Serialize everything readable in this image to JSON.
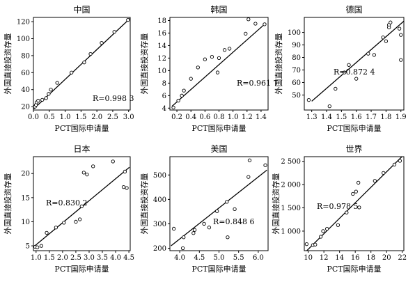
{
  "chart_data": [
    {
      "type": "scatter",
      "title": "中国",
      "xlabel": "PCT国际申请量",
      "ylabel": "外国直接投资存量",
      "annotation": "R=0.998 3",
      "xlim": [
        0,
        3.05
      ],
      "ylim": [
        16,
        125
      ],
      "xticks": [
        "0.0",
        "0.5",
        "1.0",
        "1.5",
        "2.0",
        "2.5",
        "3.0"
      ],
      "xtick_values": [
        0,
        0.5,
        1,
        1.5,
        2,
        2.5,
        3
      ],
      "yticks": [
        "20",
        "40",
        "60",
        "80",
        "100",
        "120"
      ],
      "ytick_values": [
        20,
        40,
        60,
        80,
        100,
        120
      ],
      "points": [
        [
          0.05,
          20
        ],
        [
          0.08,
          22
        ],
        [
          0.1,
          25
        ],
        [
          0.15,
          27
        ],
        [
          0.28,
          28
        ],
        [
          0.4,
          30
        ],
        [
          0.48,
          35
        ],
        [
          0.55,
          40
        ],
        [
          0.75,
          48
        ],
        [
          1.2,
          60
        ],
        [
          1.6,
          72
        ],
        [
          1.8,
          82
        ],
        [
          2.15,
          95
        ],
        [
          2.55,
          108
        ],
        [
          2.98,
          122
        ]
      ],
      "fit_line": [
        [
          0,
          17
        ],
        [
          3.05,
          124
        ]
      ]
    },
    {
      "type": "scatter",
      "title": "韩国",
      "xlabel": "PCT国际申请量",
      "ylabel": "外国直接投资存量",
      "annotation": "R=0.961 7",
      "xlim": [
        0.1,
        1.5
      ],
      "ylim": [
        3.7,
        18.5
      ],
      "xticks": [
        "0.2",
        "0.4",
        "0.6",
        "0.8",
        "1.0",
        "1.2",
        "1.4"
      ],
      "xtick_values": [
        0.2,
        0.4,
        0.6,
        0.8,
        1.0,
        1.2,
        1.4
      ],
      "yticks": [
        "4",
        "6",
        "8",
        "10",
        "12",
        "14",
        "16",
        "18"
      ],
      "ytick_values": [
        4,
        6,
        8,
        10,
        12,
        14,
        16,
        18
      ],
      "points": [
        [
          0.15,
          4.1
        ],
        [
          0.22,
          5.2
        ],
        [
          0.27,
          6.0
        ],
        [
          0.3,
          6.8
        ],
        [
          0.4,
          8.7
        ],
        [
          0.5,
          10.5
        ],
        [
          0.6,
          11.8
        ],
        [
          0.7,
          12.2
        ],
        [
          0.78,
          9.7
        ],
        [
          0.8,
          12.0
        ],
        [
          0.88,
          13.3
        ],
        [
          0.95,
          13.5
        ],
        [
          1.18,
          15.9
        ],
        [
          1.22,
          18.2
        ],
        [
          1.32,
          17.5
        ],
        [
          1.45,
          17.4
        ]
      ],
      "fit_line": [
        [
          0.13,
          4.3
        ],
        [
          1.47,
          17.6
        ]
      ]
    },
    {
      "type": "scatter",
      "title": "德国",
      "xlabel": "PCT国际申请量",
      "ylabel": "外国直接投资存量",
      "annotation": "R=0.872 4",
      "xlim": [
        1.25,
        1.92
      ],
      "ylim": [
        38,
        112
      ],
      "xticks": [
        "1.3",
        "1.4",
        "1.5",
        "1.6",
        "1.7",
        "1.8",
        "1.9"
      ],
      "xtick_values": [
        1.3,
        1.4,
        1.5,
        1.6,
        1.7,
        1.8,
        1.9
      ],
      "yticks": [
        "50",
        "60",
        "70",
        "80",
        "90",
        "100"
      ],
      "ytick_values": [
        50,
        60,
        70,
        80,
        90,
        100
      ],
      "points": [
        [
          1.28,
          46
        ],
        [
          1.42,
          41
        ],
        [
          1.46,
          55
        ],
        [
          1.52,
          68
        ],
        [
          1.55,
          74
        ],
        [
          1.6,
          63
        ],
        [
          1.68,
          83
        ],
        [
          1.72,
          82
        ],
        [
          1.78,
          96
        ],
        [
          1.8,
          93
        ],
        [
          1.82,
          106
        ],
        [
          1.82,
          104
        ],
        [
          1.83,
          108
        ],
        [
          1.89,
          103
        ],
        [
          1.9,
          98
        ],
        [
          1.9,
          78
        ]
      ],
      "fit_line": [
        [
          1.3,
          45
        ],
        [
          1.92,
          109
        ]
      ]
    },
    {
      "type": "scatter",
      "title": "日本",
      "xlabel": "PCT国际申请量",
      "ylabel": "外国直接投资存量",
      "annotation": "R=0.830 2",
      "xlim": [
        0.9,
        4.55
      ],
      "ylim": [
        4,
        23.5
      ],
      "xticks": [
        "1.0",
        "1.5",
        "2.0",
        "2.5",
        "3.0",
        "3.5",
        "4.0",
        "4.5"
      ],
      "xtick_values": [
        1.0,
        1.5,
        2.0,
        2.5,
        3.0,
        3.5,
        4.0,
        4.5
      ],
      "yticks": [
        "5",
        "10",
        "15",
        "20"
      ],
      "ytick_values": [
        5,
        10,
        15,
        20
      ],
      "points": [
        [
          0.97,
          4.8
        ],
        [
          1.05,
          4.7
        ],
        [
          1.2,
          5.0
        ],
        [
          1.4,
          7.7
        ],
        [
          1.75,
          8.8
        ],
        [
          2.05,
          9.8
        ],
        [
          2.5,
          10.0
        ],
        [
          2.65,
          10.5
        ],
        [
          2.72,
          13.2
        ],
        [
          2.8,
          20.2
        ],
        [
          2.92,
          19.8
        ],
        [
          3.15,
          21.5
        ],
        [
          3.9,
          22.5
        ],
        [
          4.3,
          17.2
        ],
        [
          4.35,
          20.4
        ],
        [
          4.42,
          17.0
        ]
      ],
      "fit_line": [
        [
          0.95,
          5.0
        ],
        [
          4.52,
          21.3
        ]
      ]
    },
    {
      "type": "scatter",
      "title": "美国",
      "xlabel": "PCT国际申请量",
      "ylabel": "外国直接投资存量",
      "annotation": "R=0.848 6",
      "xlim": [
        3.75,
        6.25
      ],
      "ylim": [
        190,
        575
      ],
      "xticks": [
        "4.0",
        "4.5",
        "5.0",
        "5.5",
        "6.0"
      ],
      "xtick_values": [
        4.0,
        4.5,
        5.0,
        5.5,
        6.0
      ],
      "yticks": [
        "200",
        "300",
        "400",
        "500"
      ],
      "ytick_values": [
        200,
        300,
        400,
        500
      ],
      "points": [
        [
          3.85,
          280
        ],
        [
          4.08,
          200
        ],
        [
          4.1,
          245
        ],
        [
          4.35,
          262
        ],
        [
          4.38,
          275
        ],
        [
          4.62,
          300
        ],
        [
          4.75,
          285
        ],
        [
          4.95,
          352
        ],
        [
          5.2,
          390
        ],
        [
          5.22,
          245
        ],
        [
          5.4,
          360
        ],
        [
          5.75,
          492
        ],
        [
          5.78,
          560
        ],
        [
          6.18,
          540
        ]
      ],
      "fit_line": [
        [
          3.78,
          210
        ],
        [
          6.22,
          520
        ]
      ]
    },
    {
      "type": "scatter",
      "title": "世界",
      "xlabel": "PCT国际申请量",
      "ylabel": "外国直接投资存量",
      "annotation": "R=0.978 5",
      "xlim": [
        9.5,
        22.2
      ],
      "ylim": [
        580,
        2600
      ],
      "xticks": [
        "10",
        "12",
        "14",
        "16",
        "18",
        "20",
        "22"
      ],
      "xtick_values": [
        10,
        12,
        14,
        16,
        18,
        20,
        22
      ],
      "yticks": [
        "1 000",
        "1 500",
        "2 000",
        "2 500"
      ],
      "ytick_values": [
        1000,
        1500,
        2000,
        2500
      ],
      "points": [
        [
          9.8,
          720
        ],
        [
          10.6,
          700
        ],
        [
          10.9,
          710
        ],
        [
          11.6,
          880
        ],
        [
          11.9,
          1000
        ],
        [
          12.4,
          1050
        ],
        [
          13.8,
          1130
        ],
        [
          14.9,
          1400
        ],
        [
          15.7,
          1800
        ],
        [
          16.1,
          1850
        ],
        [
          16.4,
          2040
        ],
        [
          16.5,
          1510
        ],
        [
          18.5,
          2080
        ],
        [
          19.6,
          2250
        ],
        [
          21,
          2430
        ],
        [
          21.7,
          2510
        ]
      ],
      "fit_line": [
        [
          9.7,
          560
        ],
        [
          21.95,
          2600
        ]
      ]
    }
  ]
}
